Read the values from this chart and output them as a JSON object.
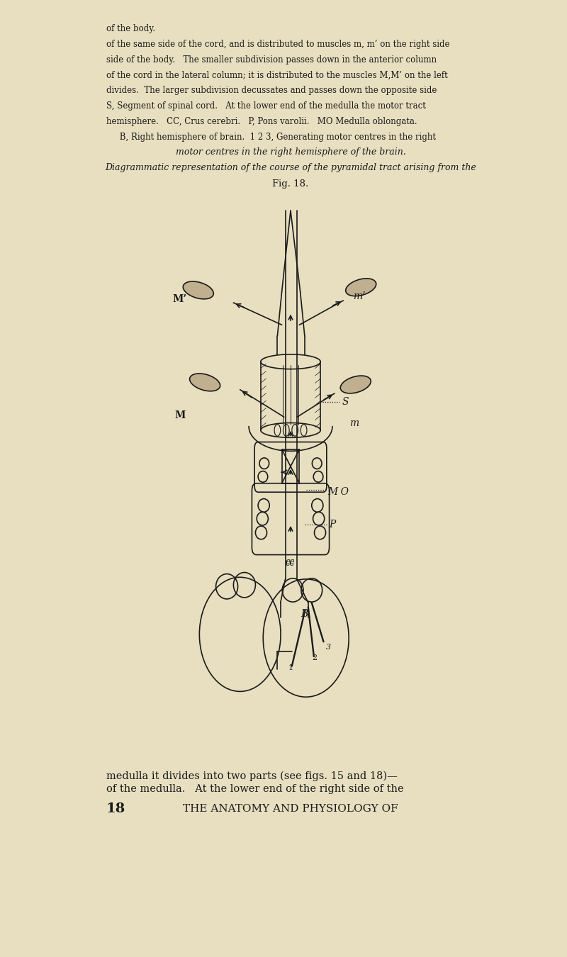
{
  "bg_color": "#e8dfc0",
  "line_color": "#1a1a1a",
  "page_number": "18",
  "header_text": "THE ANATOMY AND PHYSIOLOGY OF",
  "intro_text1": "of the medulla.   At the lower end of the right side of the",
  "intro_text2": "medulla it divides into two parts (see figs. 15 and 18)—",
  "fig_label": "Fig. 18.",
  "fig_caption1": "Diagrammatic representation of the course of the pyramidal tract arising from the",
  "fig_caption2": "motor centres in the right hemisphere of the brain.",
  "caption_body_lines": [
    "     B, Right hemisphere of brain.  1 2 3, Generating motor centres in the right",
    "hemisphere.   CC, Crus cerebri.   P, Pons varolii.   MO Medulla oblongata.",
    "S, Segment of spinal cord.   At the lower end of the medulla the motor tract",
    "divides.  The larger subdivision decussates and passes down the opposite side",
    "of the cord in the lateral column; it is distributed to the muscles M,M’ on the left",
    "side of the body.   The smaller subdivision passes down in the anterior column",
    "of the same side of the cord, and is distributed to muscles m, m’ on the right side",
    "of the body."
  ]
}
